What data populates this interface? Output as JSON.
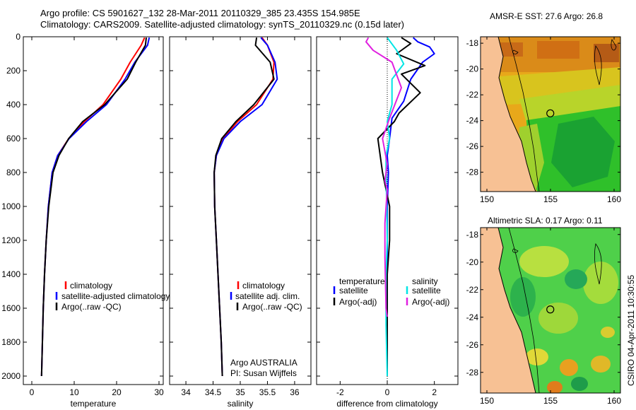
{
  "header": {
    "line1": "Argo profile: CS 5901627_132 28-Mar-2011 20110329_385 23.435S 154.985E",
    "line2": "Climatology: CARS2009. Satellite-adjusted climatology: synTS_20110329.nc (0.15d later)"
  },
  "colors": {
    "climatology": "#ff0000",
    "satellite": "#0000ff",
    "argo": "#000000",
    "satellite_s": "#00e5e5",
    "argo_s": "#e020e0",
    "land": "#f7c194"
  },
  "chart_data": [
    {
      "type": "line",
      "name": "temperature",
      "xlabel": "temperature",
      "ylabel": "",
      "xlim": [
        -2,
        31
      ],
      "ylim": [
        2050,
        0
      ],
      "xticks": [
        0,
        10,
        20,
        30
      ],
      "yticks": [
        0,
        200,
        400,
        600,
        800,
        1000,
        1200,
        1400,
        1600,
        1800,
        2000
      ],
      "series": [
        {
          "name": "climatology",
          "color": "#ff0000",
          "x": [
            26.6,
            25.8,
            23.2,
            21.0,
            16.8,
            12.4,
            8.7,
            6.1,
            4.8,
            3.9,
            3.4,
            3.0,
            2.7,
            2.5,
            2.3
          ],
          "depth": [
            5,
            50,
            150,
            250,
            400,
            500,
            600,
            700,
            800,
            1000,
            1200,
            1400,
            1600,
            1800,
            2000
          ]
        },
        {
          "name": "satellite-adjusted climatology",
          "color": "#0000ff",
          "x": [
            27.7,
            27.3,
            24.3,
            22.0,
            17.6,
            12.9,
            8.8,
            6.1,
            4.8,
            3.9,
            3.4,
            3.0,
            2.7,
            2.5,
            2.3
          ],
          "depth": [
            5,
            50,
            150,
            250,
            400,
            500,
            600,
            700,
            800,
            1000,
            1200,
            1400,
            1600,
            1800,
            2000
          ]
        },
        {
          "name": "Argo(..raw -QC)",
          "color": "#000000",
          "x": [
            27.0,
            26.8,
            24.5,
            22.5,
            17.2,
            12.0,
            8.7,
            6.4,
            5.0,
            4.0,
            3.4,
            3.0,
            2.7,
            2.5,
            2.3
          ],
          "depth": [
            5,
            50,
            150,
            250,
            400,
            500,
            600,
            700,
            800,
            1000,
            1200,
            1400,
            1600,
            1800,
            2000
          ]
        }
      ],
      "legend": [
        "climatology",
        "satellite-adjusted climatology",
        "Argo(..raw -QC)"
      ]
    },
    {
      "type": "line",
      "name": "salinity",
      "xlabel": "salinity",
      "xlim": [
        33.7,
        36.3
      ],
      "ylim": [
        2050,
        0
      ],
      "xticks": [
        34,
        34.5,
        35,
        35.5,
        36
      ],
      "series": [
        {
          "name": "climatology",
          "color": "#ff0000",
          "x": [
            35.4,
            35.5,
            35.62,
            35.6,
            35.3,
            34.95,
            34.68,
            34.56,
            34.52,
            34.53,
            34.56,
            34.59,
            34.62,
            34.65,
            34.67
          ],
          "depth": [
            5,
            50,
            150,
            250,
            400,
            500,
            600,
            700,
            800,
            1000,
            1200,
            1400,
            1600,
            1800,
            2000
          ]
        },
        {
          "name": "satellite adj. clim.",
          "color": "#0000ff",
          "x": [
            35.38,
            35.5,
            35.64,
            35.68,
            35.4,
            35.0,
            34.7,
            34.56,
            34.52,
            34.53,
            34.56,
            34.59,
            34.62,
            34.65,
            34.67
          ],
          "depth": [
            5,
            50,
            150,
            250,
            400,
            500,
            600,
            700,
            800,
            1000,
            1200,
            1400,
            1600,
            1800,
            2000
          ]
        },
        {
          "name": "Argo(..raw -QC)",
          "color": "#000000",
          "x": [
            35.3,
            35.28,
            35.55,
            35.62,
            35.25,
            34.92,
            34.66,
            34.55,
            34.52,
            34.53,
            34.56,
            34.59,
            34.62,
            34.65,
            34.67
          ],
          "depth": [
            5,
            50,
            150,
            250,
            400,
            500,
            600,
            700,
            800,
            1000,
            1200,
            1400,
            1600,
            1800,
            2000
          ]
        }
      ],
      "legend": [
        "climatology",
        "satellite adj. clim.",
        "Argo(..raw -QC)"
      ],
      "annotation": [
        "Argo AUSTRALIA",
        "PI: Susan Wijffels"
      ]
    },
    {
      "type": "line",
      "name": "difference",
      "xlabel": "difference from climatology",
      "xlim": [
        -3,
        3
      ],
      "ylim": [
        2050,
        0
      ],
      "xticks": [
        -2,
        0,
        2
      ],
      "series": [
        {
          "name": "satellite (temperature)",
          "color": "#0000ff",
          "x": [
            1.1,
            1.3,
            1.8,
            2.0,
            1.5,
            1.0,
            0.7,
            0.2,
            0.1,
            0.0,
            0.05,
            0.0,
            0.0,
            0.0,
            0.0,
            0.0
          ],
          "depth": [
            5,
            30,
            60,
            100,
            150,
            250,
            380,
            480,
            600,
            700,
            800,
            1000,
            1200,
            1400,
            1700,
            2000
          ]
        },
        {
          "name": "Argo(-adj) (temperature)",
          "color": "#000000",
          "x": [
            0.6,
            1.0,
            0.4,
            1.6,
            0.6,
            1.4,
            0.5,
            0.3,
            -0.4,
            -0.3,
            -0.2,
            0.1,
            0.1,
            0.0,
            0.0,
            0.0
          ],
          "depth": [
            5,
            40,
            100,
            170,
            220,
            330,
            450,
            500,
            600,
            700,
            800,
            1000,
            1200,
            1400,
            1700,
            2000
          ]
        },
        {
          "name": "satellite (salinity)",
          "color": "#00e5e5",
          "x": [
            0.0,
            0.4,
            0.7,
            0.2,
            0.2,
            0.0,
            0.1,
            -0.05,
            -0.05,
            -0.02,
            0.0,
            -0.05,
            -0.05,
            0.0
          ],
          "depth": [
            5,
            80,
            160,
            250,
            400,
            500,
            600,
            700,
            800,
            1000,
            1200,
            1400,
            1700,
            2000
          ]
        },
        {
          "name": "Argo(-adj) (salinity)",
          "color": "#e020e0",
          "x": [
            -0.8,
            -0.9,
            -0.6,
            0.2,
            0.6,
            0.1,
            -0.2,
            0.0,
            -0.1,
            0.0,
            -0.1,
            -0.1,
            -0.05,
            0.0
          ],
          "depth": [
            5,
            30,
            80,
            150,
            300,
            480,
            600,
            750,
            850,
            900,
            1100,
            1300,
            1600,
            1650
          ]
        }
      ],
      "legend_temperature": {
        "heading": "temperature",
        "items": [
          "satellite",
          "Argo(-adj)"
        ]
      },
      "legend_salinity": {
        "heading": "salinity",
        "items": [
          "satellite",
          "Argo(-adj)"
        ]
      }
    },
    {
      "type": "heatmap",
      "name": "sst-map",
      "title": "AMSR-E SST: 27.6 Argo: 26.8",
      "xlim": [
        149.5,
        160.5
      ],
      "ylim": [
        -29.5,
        -17.5
      ],
      "xticks": [
        150,
        155,
        160
      ],
      "yticks": [
        -18,
        -20,
        -22,
        -24,
        -26,
        -28
      ],
      "marker": {
        "lon": 154.985,
        "lat": -23.435
      }
    },
    {
      "type": "heatmap",
      "name": "sla-map",
      "title": "Altimetric SLA: 0.17 Argo: 0.11",
      "xlim": [
        149.5,
        160.5
      ],
      "ylim": [
        -29.5,
        -17.5
      ],
      "xticks": [
        150,
        155,
        160
      ],
      "yticks": [
        -18,
        -20,
        -22,
        -24,
        -26,
        -28
      ],
      "marker": {
        "lon": 154.985,
        "lat": -23.435
      }
    }
  ],
  "credit": "CSIRO 04-Apr-2011 10:30:55"
}
